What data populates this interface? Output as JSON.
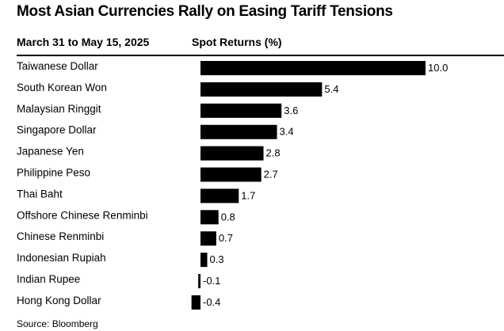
{
  "title": "Most Asian Currencies Rally on Easing Tariff Tensions",
  "header": {
    "period": "March 31 to May 15, 2025",
    "metric": "Spot Returns (%)"
  },
  "source": "Source: Bloomberg",
  "colors": {
    "bar": "#000000",
    "text": "#000000",
    "background": "#ffffff"
  },
  "chart_data": {
    "type": "bar",
    "orientation": "horizontal",
    "categories": [
      "Taiwanese Dollar",
      "South Korean Won",
      "Malaysian Ringgit",
      "Singapore Dollar",
      "Japanese Yen",
      "Philippine Peso",
      "Thai Baht",
      "Offshore Chinese Renminbi",
      "Chinese Renminbi",
      "Indonesian Rupiah",
      "Indian Rupee",
      "Hong Kong Dollar"
    ],
    "values": [
      10.0,
      5.4,
      3.6,
      3.4,
      2.8,
      2.7,
      1.7,
      0.8,
      0.7,
      0.3,
      -0.1,
      -0.4
    ],
    "value_labels": [
      "10.0",
      "5.4",
      "3.6",
      "3.4",
      "2.8",
      "2.7",
      "1.7",
      "0.8",
      "0.7",
      "0.3",
      "-0.1",
      "-0.4"
    ],
    "xlim": [
      -0.4,
      10.0
    ],
    "grid": false,
    "legend": "none"
  }
}
